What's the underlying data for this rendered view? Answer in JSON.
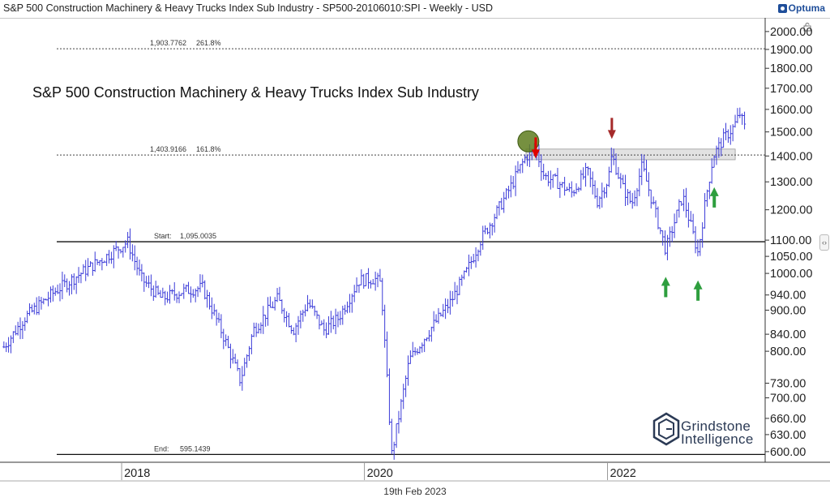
{
  "header": {
    "title": "S&P 500 Construction Machinery & Heavy Trucks Index Sub Industry - SP500-20106010:SPI - Weekly - USD",
    "brand": "Optuma",
    "brand_icon": "optuma-logo-icon"
  },
  "footer": {
    "date": "19th Feb 2023"
  },
  "watermark": {
    "line1": "Grindstone",
    "line2": "Intelligence"
  },
  "colors": {
    "bars": "#3b3bd8",
    "down_arrow_dark": "#a52a2a",
    "down_arrow_red": "#e00000",
    "up_arrow": "#2e9e3e",
    "circle": "#5e7d1e",
    "zone": "#d8d8d8"
  },
  "chart_data": {
    "type": "ohlc",
    "title": "S&P 500 Construction Machinery & Heavy Trucks Index Sub Industry",
    "y_scale": "log",
    "ylim": [
      582,
      2080
    ],
    "xlim": [
      "2017-01-10",
      "2023-04-20"
    ],
    "y_ticks": [
      "600.00",
      "630.00",
      "660.00",
      "700.00",
      "730.00",
      "800.00",
      "840.00",
      "900.00",
      "940.00",
      "1000.00",
      "1050.00",
      "1100.00",
      "1200.00",
      "1300.00",
      "1400.00",
      "1500.00",
      "1600.00",
      "1700.00",
      "1800.00",
      "1900.00",
      "2000.00"
    ],
    "x_ticks": [
      {
        "label": "2018",
        "date": "2018-01-01"
      },
      {
        "label": "2020",
        "date": "2020-01-01"
      },
      {
        "label": "2022",
        "date": "2022-01-01"
      }
    ],
    "anchors": [
      [
        "2017-01-12",
        810
      ],
      [
        "2017-03-15",
        880
      ],
      [
        "2017-06-15",
        950
      ],
      [
        "2017-09-15",
        1010
      ],
      [
        "2017-12-01",
        1060
      ],
      [
        "2018-01-19",
        1095
      ],
      [
        "2018-03-01",
        985
      ],
      [
        "2018-05-01",
        930
      ],
      [
        "2018-07-01",
        950
      ],
      [
        "2018-09-01",
        960
      ],
      [
        "2018-10-01",
        900
      ],
      [
        "2018-11-01",
        840
      ],
      [
        "2018-12-24",
        735
      ],
      [
        "2019-02-01",
        850
      ],
      [
        "2019-04-15",
        930
      ],
      [
        "2019-06-01",
        850
      ],
      [
        "2019-07-15",
        920
      ],
      [
        "2019-09-01",
        850
      ],
      [
        "2019-10-15",
        880
      ],
      [
        "2019-12-15",
        980
      ],
      [
        "2020-02-01",
        985
      ],
      [
        "2020-02-20",
        970
      ],
      [
        "2020-03-23",
        595
      ],
      [
        "2020-05-15",
        780
      ],
      [
        "2020-07-15",
        850
      ],
      [
        "2020-09-15",
        920
      ],
      [
        "2020-11-01",
        1000
      ],
      [
        "2020-12-15",
        1100
      ],
      [
        "2021-02-01",
        1190
      ],
      [
        "2021-03-15",
        1280
      ],
      [
        "2021-05-01",
        1400
      ],
      [
        "2021-06-01",
        1420
      ],
      [
        "2021-06-25",
        1320
      ],
      [
        "2021-08-01",
        1300
      ],
      [
        "2021-09-15",
        1260
      ],
      [
        "2021-11-01",
        1340
      ],
      [
        "2021-12-01",
        1230
      ],
      [
        "2022-01-03",
        1310
      ],
      [
        "2022-01-14",
        1403
      ],
      [
        "2022-02-15",
        1280
      ],
      [
        "2022-03-15",
        1220
      ],
      [
        "2022-04-15",
        1360
      ],
      [
        "2022-05-15",
        1230
      ],
      [
        "2022-06-25",
        1070
      ],
      [
        "2022-08-15",
        1250
      ],
      [
        "2022-09-30",
        1060
      ],
      [
        "2022-10-25",
        1250
      ],
      [
        "2022-11-15",
        1400
      ],
      [
        "2022-12-15",
        1470
      ],
      [
        "2023-01-15",
        1520
      ],
      [
        "2023-02-03",
        1580
      ],
      [
        "2023-02-17",
        1520
      ]
    ],
    "bar_count": 318,
    "reference_lines": [
      {
        "label": "1,903.7762",
        "pct": "261.8%",
        "value": 1903.7762,
        "style": "dotted"
      },
      {
        "label": "1,403.9166",
        "pct": "161.8%",
        "value": 1403.9166,
        "style": "dotted"
      },
      {
        "label_prefix": "Start:",
        "label": "1,095.0035",
        "value": 1095.0035,
        "style": "solid"
      },
      {
        "label_prefix": "End:",
        "label": "595.1439",
        "value": 595.1439,
        "style": "solid"
      }
    ],
    "resistance_zone": {
      "start": "2021-05-01",
      "end": "2023-01-20",
      "low": 1385,
      "high": 1428
    },
    "annotations": [
      {
        "type": "circle",
        "date": "2021-05-08",
        "value": 1460
      },
      {
        "type": "arrow-down",
        "color": "red",
        "date": "2021-05-30",
        "value": 1390
      },
      {
        "type": "arrow-down",
        "color": "dark-red",
        "date": "2022-01-14",
        "value": 1470
      },
      {
        "type": "arrow-up",
        "color": "green",
        "date": "2022-06-25",
        "value": 990
      },
      {
        "type": "arrow-up",
        "color": "green",
        "date": "2022-09-30",
        "value": 980
      },
      {
        "type": "arrow-up",
        "color": "green",
        "date": "2022-11-18",
        "value": 1280
      }
    ]
  }
}
